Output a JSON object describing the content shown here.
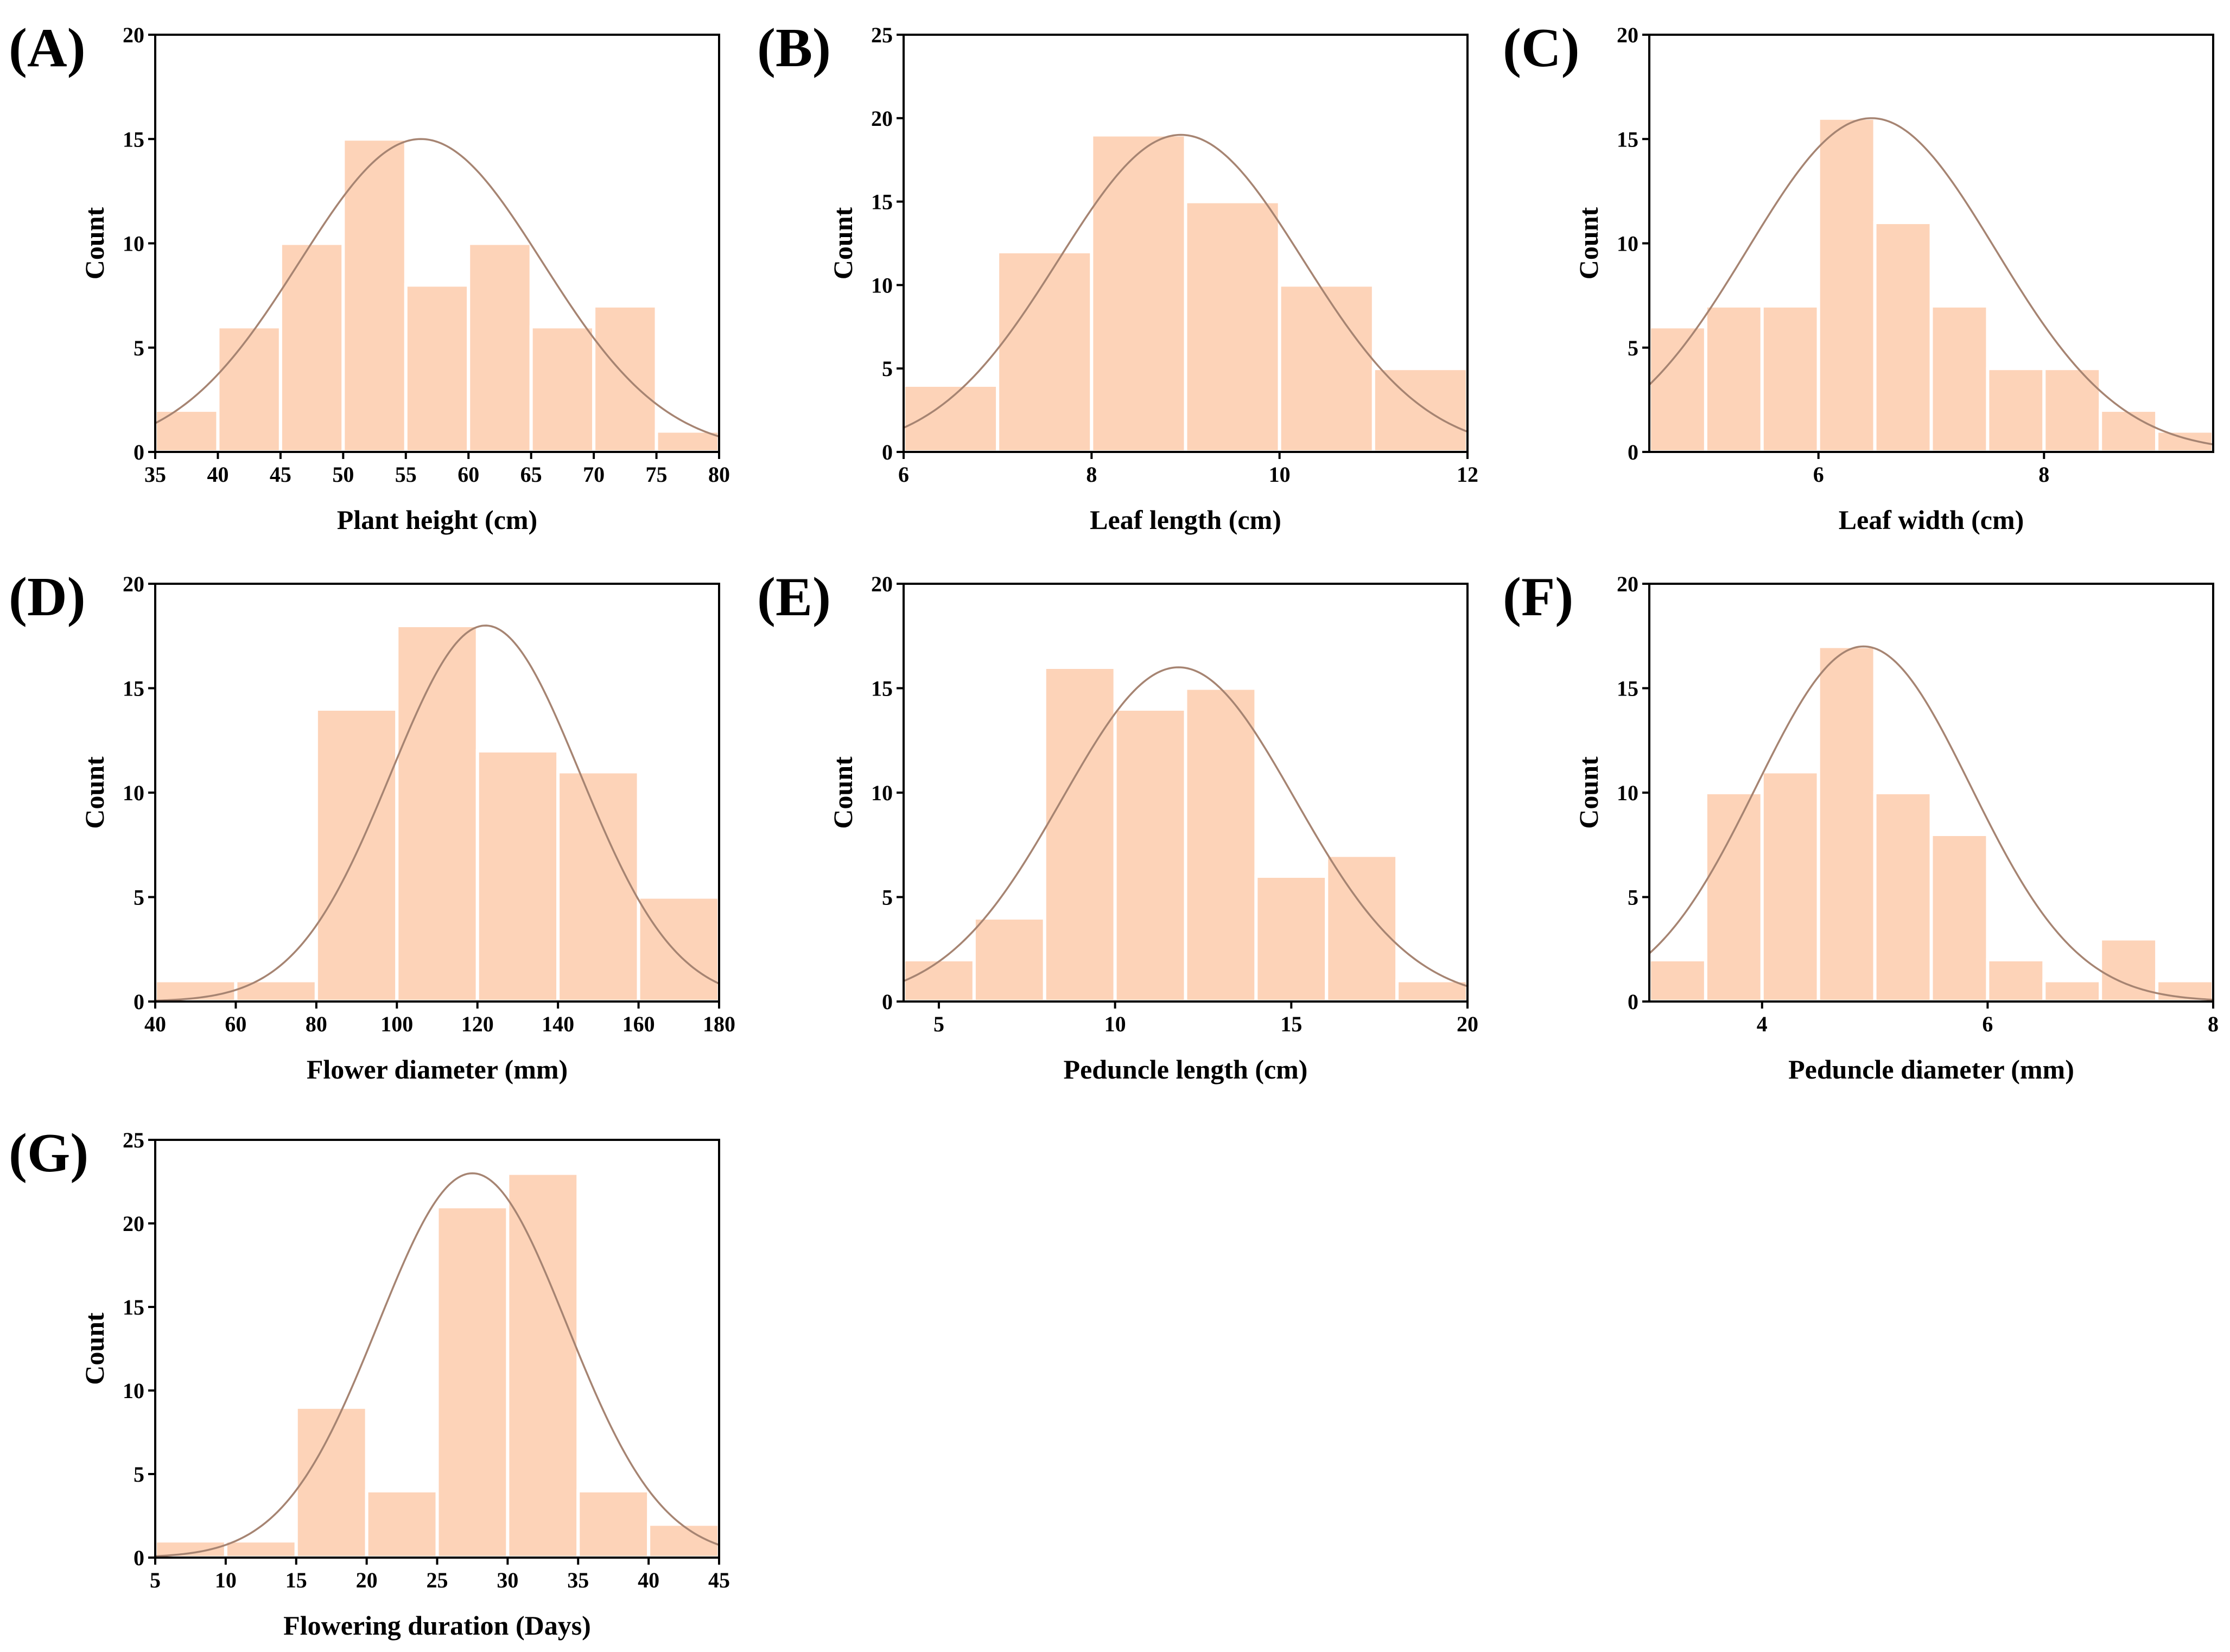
{
  "colors": {
    "bar": "#FDD3B8",
    "curve": "#A68472",
    "axis": "#000000",
    "background": "#FFFFFF"
  },
  "chart_data": [
    {
      "panel": "(A)",
      "type": "bar",
      "xlabel": "Plant height (cm)",
      "ylabel": "Count",
      "xlim": [
        35,
        80
      ],
      "ylim": [
        0,
        20
      ],
      "xticks": [
        35,
        40,
        45,
        50,
        55,
        60,
        65,
        70,
        75,
        80
      ],
      "yticks": [
        0,
        5,
        10,
        15,
        20
      ],
      "bin_edges": [
        35,
        40,
        45,
        50,
        55,
        60,
        65,
        70,
        75,
        80
      ],
      "counts": [
        2,
        6,
        10,
        15,
        8,
        10,
        6,
        7,
        1
      ],
      "normal_fit": {
        "mean": 56.2,
        "sd": 9.7,
        "peak": 15
      }
    },
    {
      "panel": "(B)",
      "type": "bar",
      "xlabel": "Leaf length (cm)",
      "ylabel": "Count",
      "xlim": [
        6,
        12
      ],
      "ylim": [
        0,
        25
      ],
      "xticks": [
        6,
        8,
        10,
        12
      ],
      "yticks": [
        0,
        5,
        10,
        15,
        20,
        25
      ],
      "bin_edges": [
        6,
        7,
        8,
        9,
        10,
        11,
        12
      ],
      "counts": [
        4,
        12,
        19,
        15,
        10,
        5
      ],
      "normal_fit": {
        "mean": 8.95,
        "sd": 1.3,
        "peak": 19
      }
    },
    {
      "panel": "(C)",
      "type": "bar",
      "xlabel": "Leaf width (cm)",
      "ylabel": "Count",
      "xlim": [
        4.5,
        9.5
      ],
      "ylim": [
        0,
        20
      ],
      "xticks": [
        6,
        8
      ],
      "yticks": [
        0,
        5,
        10,
        15,
        20
      ],
      "bin_edges": [
        4.5,
        5.0,
        5.5,
        6.0,
        6.5,
        7.0,
        7.5,
        8.0,
        8.5,
        9.0,
        9.5
      ],
      "counts": [
        6,
        7,
        7,
        16,
        11,
        7,
        4,
        4,
        2,
        1
      ],
      "normal_fit": {
        "mean": 6.47,
        "sd": 1.1,
        "peak": 16
      }
    },
    {
      "panel": "(D)",
      "type": "bar",
      "xlabel": "Flower diameter (mm)",
      "ylabel": "Count",
      "xlim": [
        40,
        180
      ],
      "ylim": [
        0,
        20
      ],
      "xticks": [
        40,
        60,
        80,
        100,
        120,
        140,
        160,
        180
      ],
      "yticks": [
        0,
        5,
        10,
        15,
        20
      ],
      "bin_edges": [
        40,
        60,
        80,
        100,
        120,
        140,
        160,
        180
      ],
      "counts": [
        1,
        1,
        14,
        18,
        12,
        11,
        5
      ],
      "normal_fit": {
        "mean": 122,
        "sd": 23.5,
        "peak": 18
      }
    },
    {
      "panel": "(E)",
      "type": "bar",
      "xlabel": "Peduncle length (cm)",
      "ylabel": "Count",
      "xlim": [
        4,
        20
      ],
      "ylim": [
        0,
        20
      ],
      "xticks": [
        5,
        10,
        15,
        20
      ],
      "yticks": [
        0,
        5,
        10,
        15,
        20
      ],
      "bin_edges": [
        4,
        6,
        8,
        10,
        12,
        14,
        16,
        18,
        20
      ],
      "counts": [
        2,
        4,
        16,
        14,
        15,
        6,
        7,
        1
      ],
      "normal_fit": {
        "mean": 11.8,
        "sd": 3.3,
        "peak": 16
      }
    },
    {
      "panel": "(F)",
      "type": "bar",
      "xlabel": "Peduncle diameter (mm)",
      "ylabel": "Count",
      "xlim": [
        3,
        8
      ],
      "ylim": [
        0,
        20
      ],
      "xticks": [
        4,
        6,
        8
      ],
      "yticks": [
        0,
        5,
        10,
        15,
        20
      ],
      "bin_edges": [
        3.0,
        3.5,
        4.0,
        4.5,
        5.0,
        5.5,
        6.0,
        6.5,
        7.0,
        7.5,
        8.0
      ],
      "counts": [
        2,
        10,
        11,
        17,
        10,
        8,
        2,
        1,
        3,
        1
      ],
      "normal_fit": {
        "mean": 4.9,
        "sd": 0.95,
        "peak": 17
      }
    },
    {
      "panel": "(G)",
      "type": "bar",
      "xlabel": "Flowering duration (Days)",
      "ylabel": "Count",
      "xlim": [
        5,
        45
      ],
      "ylim": [
        0,
        25
      ],
      "xticks": [
        5,
        10,
        15,
        20,
        25,
        30,
        35,
        40,
        45
      ],
      "yticks": [
        0,
        5,
        10,
        15,
        20,
        25
      ],
      "bin_edges": [
        5,
        10,
        15,
        20,
        25,
        30,
        35,
        40,
        45
      ],
      "counts": [
        1,
        1,
        9,
        4,
        21,
        23,
        4,
        2
      ],
      "normal_fit": {
        "mean": 27.5,
        "sd": 6.7,
        "peak": 23
      }
    }
  ]
}
